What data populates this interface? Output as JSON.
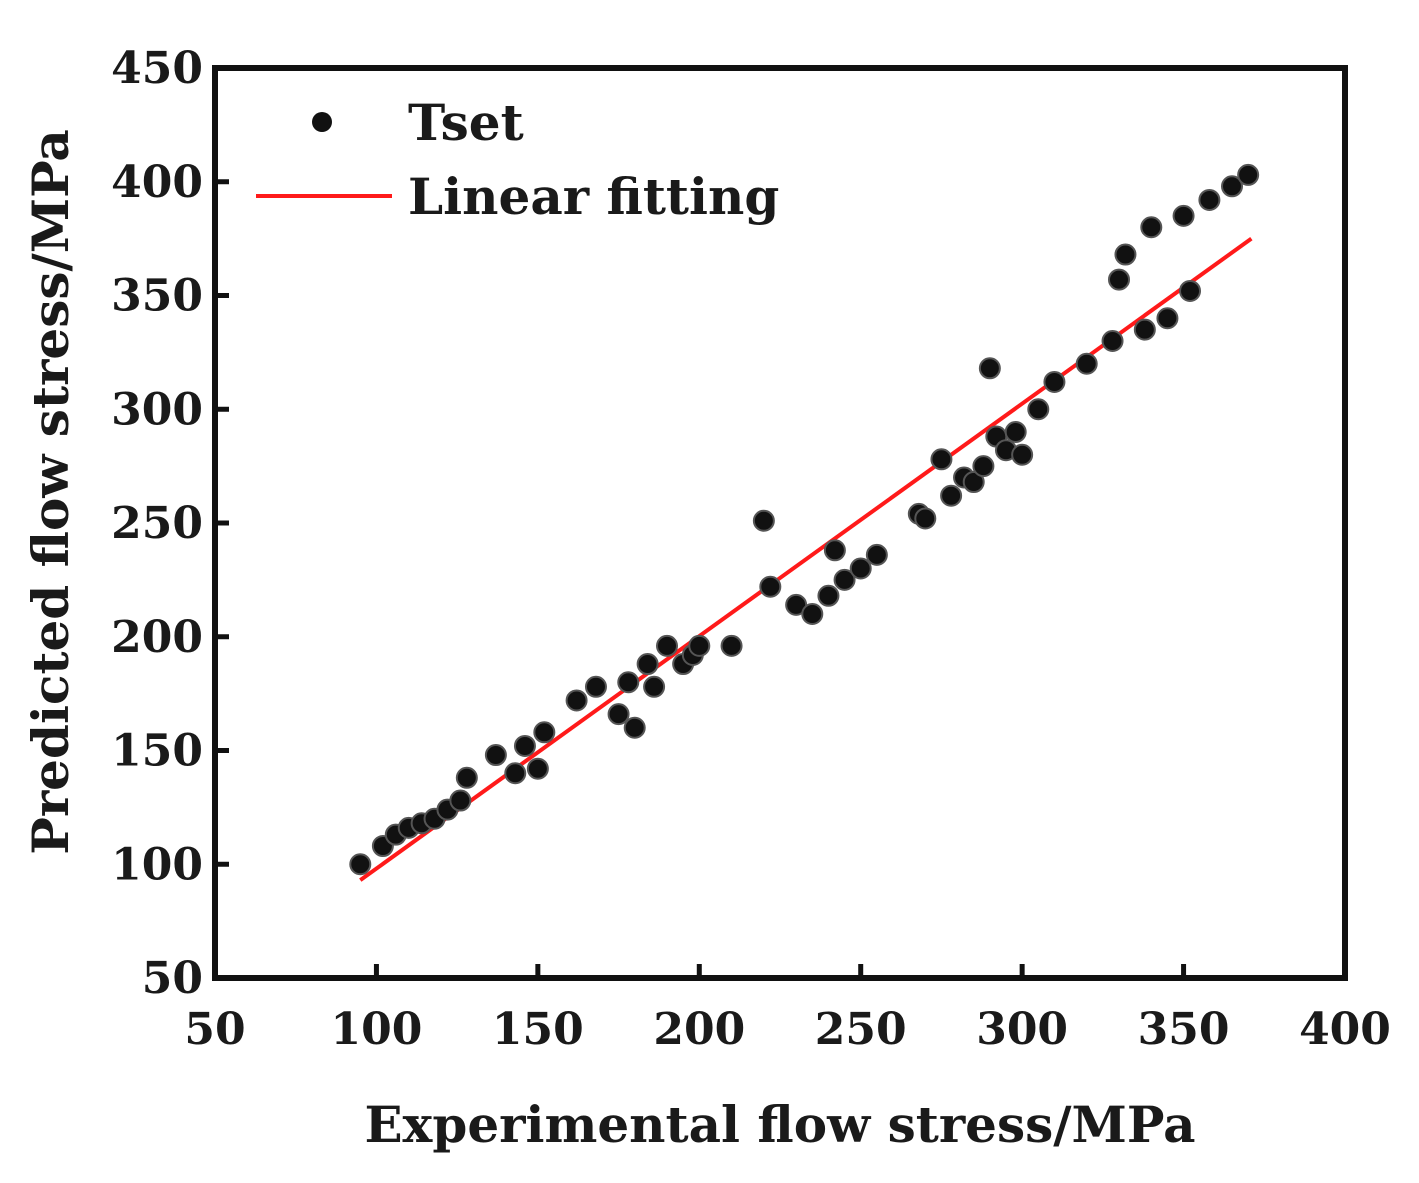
{
  "chart_data": {
    "type": "scatter",
    "title": "",
    "xlabel": "Experimental flow stress/MPa",
    "ylabel": "Predicted flow stress/MPa",
    "xlim": [
      50,
      400
    ],
    "ylim": [
      50,
      450
    ],
    "xticks": [
      50,
      100,
      150,
      200,
      250,
      300,
      350,
      400
    ],
    "yticks": [
      50,
      100,
      150,
      200,
      250,
      300,
      350,
      400,
      450
    ],
    "legend_position": "top-left",
    "colors": {
      "points": "#111111",
      "fit_line": "#ff1a1a",
      "axes": "#111111"
    },
    "series": [
      {
        "name": "Tset",
        "kind": "scatter",
        "x": [
          95,
          102,
          106,
          110,
          114,
          118,
          122,
          126,
          128,
          137,
          143,
          146,
          150,
          152,
          162,
          168,
          175,
          178,
          180,
          184,
          190,
          186,
          195,
          198,
          200,
          210,
          220,
          222,
          230,
          235,
          240,
          242,
          245,
          250,
          255,
          268,
          270,
          275,
          278,
          282,
          285,
          288,
          290,
          292,
          295,
          298,
          300,
          305,
          310,
          320,
          328,
          330,
          332,
          338,
          340,
          345,
          350,
          352,
          358,
          365,
          370
        ],
        "y": [
          100,
          108,
          113,
          116,
          118,
          120,
          124,
          128,
          138,
          148,
          140,
          152,
          142,
          158,
          172,
          178,
          166,
          180,
          160,
          188,
          196,
          178,
          188,
          192,
          196,
          196,
          251,
          222,
          214,
          210,
          218,
          238,
          225,
          230,
          236,
          254,
          252,
          278,
          262,
          270,
          268,
          275,
          318,
          288,
          282,
          290,
          280,
          300,
          312,
          320,
          330,
          357,
          368,
          335,
          380,
          340,
          385,
          352,
          392,
          398,
          403
        ]
      },
      {
        "name": "Linear fitting",
        "kind": "line",
        "x": [
          95,
          371
        ],
        "y": [
          93,
          375
        ]
      }
    ]
  }
}
